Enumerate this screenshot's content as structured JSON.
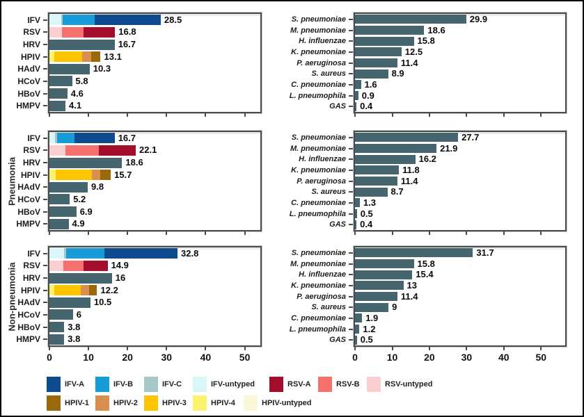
{
  "figure": {
    "title": "",
    "row_labels": [
      "",
      "Pneumonia",
      "Non-pneumonia"
    ],
    "colors": {
      "IFV-A": "#0e4a8e",
      "IFV-B": "#189cd8",
      "IFV-C": "#a5c8c6",
      "IFV-untyped": "#d9f6f9",
      "RSV-A": "#a40e2d",
      "RSV-B": "#f4716d",
      "RSV-untyped": "#f9cfd1",
      "HPIV-1": "#9a690b",
      "HPIV-2": "#d98f4f",
      "HPIV-3": "#fdc500",
      "HPIV-4": "#fbf36d",
      "HPIV-untyped": "#fbf8d9",
      "default_bar": "#45666e",
      "panel_border": "#4a4a4a",
      "figure_border": "#000000"
    },
    "legend": {
      "row1": [
        {
          "label": "IFV-A",
          "color": "#0e4a8e"
        },
        {
          "label": "IFV-B",
          "color": "#189cd8"
        },
        {
          "label": "IFV-C",
          "color": "#a5c8c6"
        },
        {
          "label": "IFV-untyped",
          "color": "#d9f6f9"
        },
        {
          "label": "RSV-A",
          "color": "#a40e2d"
        },
        {
          "label": "RSV-B",
          "color": "#f4716d"
        },
        {
          "label": "RSV-untyped",
          "color": "#f9cfd1"
        }
      ],
      "row2": [
        {
          "label": "HPIV-1",
          "color": "#9a690b"
        },
        {
          "label": "HPIV-2",
          "color": "#d98f4f"
        },
        {
          "label": "HPIV-3",
          "color": "#fdc500"
        },
        {
          "label": "HPIV-4",
          "color": "#fbf36d"
        },
        {
          "label": "HPIV-untyped",
          "color": "#fbf8d9"
        }
      ]
    }
  },
  "chart_data": {
    "type": "bar",
    "orientation": "horizontal",
    "grid": "3 rows (all cases, pneumonia, non-pneumonia) x 2 columns (viruses with subtype stacks, bacteria)",
    "x_axis": {
      "tick_labels": [
        "0",
        "10",
        "20",
        "30",
        "40",
        "50"
      ],
      "tick_values": [
        0,
        10,
        20,
        30,
        40,
        50
      ],
      "xlim": [
        0,
        50
      ],
      "labels_shown_on_row": 2
    },
    "panels": [
      {
        "id": "viruses-all",
        "row": 0,
        "col": "left",
        "label_style": "bold",
        "bars": [
          {
            "category": "IFV",
            "value": 28.5,
            "label": "28.5",
            "segments": [
              {
                "part": "IFV-untyped",
                "value": 3.0
              },
              {
                "part": "IFV-C",
                "value": 0.4
              },
              {
                "part": "IFV-B",
                "value": 8.1
              },
              {
                "part": "IFV-A",
                "value": 17.0
              }
            ]
          },
          {
            "category": "RSV",
            "value": 16.8,
            "label": "16.8",
            "segments": [
              {
                "part": "RSV-untyped",
                "value": 3.2
              },
              {
                "part": "RSV-B",
                "value": 5.5
              },
              {
                "part": "RSV-A",
                "value": 8.1
              }
            ]
          },
          {
            "category": "HRV",
            "value": 16.7,
            "label": "16.7"
          },
          {
            "category": "HPIV",
            "value": 13.1,
            "label": "13.1",
            "segments": [
              {
                "part": "HPIV-4",
                "value": 1.2
              },
              {
                "part": "HPIV-3",
                "value": 7.1
              },
              {
                "part": "HPIV-2",
                "value": 2.4
              },
              {
                "part": "HPIV-1",
                "value": 2.4
              }
            ]
          },
          {
            "category": "HAdV",
            "value": 10.3,
            "label": "10.3"
          },
          {
            "category": "HCoV",
            "value": 5.8,
            "label": "5.8"
          },
          {
            "category": "HBoV",
            "value": 4.6,
            "label": "4.6"
          },
          {
            "category": "HMPV",
            "value": 4.1,
            "label": "4.1"
          }
        ]
      },
      {
        "id": "bacteria-all",
        "row": 0,
        "col": "right",
        "label_style": "italic",
        "bars": [
          {
            "category": "S. pneumoniae",
            "value": 29.9,
            "label": "29.9"
          },
          {
            "category": "M. pneumoniae",
            "value": 18.6,
            "label": "18.6"
          },
          {
            "category": "H. influenzae",
            "value": 15.8,
            "label": "15.8"
          },
          {
            "category": "K. pneumoniae",
            "value": 12.5,
            "label": "12.5"
          },
          {
            "category": "P. aeruginosa",
            "value": 11.4,
            "label": "11.4"
          },
          {
            "category": "S. aureus",
            "value": 8.9,
            "label": "8.9"
          },
          {
            "category": "C. pneumoniae",
            "value": 1.6,
            "label": "1.6"
          },
          {
            "category": "L. pneumophila",
            "value": 0.9,
            "label": "0.9"
          },
          {
            "category": "GAS",
            "value": 0.4,
            "label": "0.4"
          }
        ]
      },
      {
        "id": "viruses-pneumonia",
        "row": 1,
        "col": "left",
        "label_style": "bold",
        "bars": [
          {
            "category": "IFV",
            "value": 16.7,
            "label": "16.7",
            "segments": [
              {
                "part": "IFV-untyped",
                "value": 1.5
              },
              {
                "part": "IFV-C",
                "value": 0.4
              },
              {
                "part": "IFV-B",
                "value": 4.6
              },
              {
                "part": "IFV-A",
                "value": 10.2
              }
            ]
          },
          {
            "category": "RSV",
            "value": 22.1,
            "label": "22.1",
            "segments": [
              {
                "part": "RSV-untyped",
                "value": 4.1
              },
              {
                "part": "RSV-B",
                "value": 8.6
              },
              {
                "part": "RSV-A",
                "value": 9.4
              }
            ]
          },
          {
            "category": "HRV",
            "value": 18.6,
            "label": "18.6"
          },
          {
            "category": "HPIV",
            "value": 15.7,
            "label": "15.7",
            "segments": [
              {
                "part": "HPIV-4",
                "value": 1.6
              },
              {
                "part": "HPIV-3",
                "value": 9.3
              },
              {
                "part": "HPIV-2",
                "value": 2.2
              },
              {
                "part": "HPIV-1",
                "value": 2.6
              }
            ]
          },
          {
            "category": "HAdV",
            "value": 9.8,
            "label": "9.8"
          },
          {
            "category": "HCoV",
            "value": 5.2,
            "label": "5.2"
          },
          {
            "category": "HBoV",
            "value": 6.9,
            "label": "6.9"
          },
          {
            "category": "HMPV",
            "value": 4.9,
            "label": "4.9"
          }
        ]
      },
      {
        "id": "bacteria-pneumonia",
        "row": 1,
        "col": "right",
        "label_style": "italic",
        "bars": [
          {
            "category": "S. pneumoniae",
            "value": 27.7,
            "label": "27.7"
          },
          {
            "category": "M. pneumoniae",
            "value": 21.9,
            "label": "21.9"
          },
          {
            "category": "H. influenzae",
            "value": 16.2,
            "label": "16.2"
          },
          {
            "category": "K. pneumoniae",
            "value": 11.8,
            "label": "11.8"
          },
          {
            "category": "P. aeruginosa",
            "value": 11.4,
            "label": "11.4"
          },
          {
            "category": "S. aureus",
            "value": 8.7,
            "label": "8.7"
          },
          {
            "category": "C. pneumoniae",
            "value": 1.3,
            "label": "1.3"
          },
          {
            "category": "L. pneumophila",
            "value": 0.5,
            "label": "0.5"
          },
          {
            "category": "GAS",
            "value": 0.4,
            "label": "0.4"
          }
        ]
      },
      {
        "id": "viruses-non-pneumonia",
        "row": 2,
        "col": "left",
        "label_style": "bold",
        "bars": [
          {
            "category": "IFV",
            "value": 32.8,
            "label": "32.8",
            "segments": [
              {
                "part": "IFV-untyped",
                "value": 3.8
              },
              {
                "part": "IFV-C",
                "value": 0.5
              },
              {
                "part": "IFV-B",
                "value": 9.7
              },
              {
                "part": "IFV-A",
                "value": 18.8
              }
            ]
          },
          {
            "category": "RSV",
            "value": 14.9,
            "label": "14.9",
            "segments": [
              {
                "part": "RSV-untyped",
                "value": 3.5
              },
              {
                "part": "RSV-B",
                "value": 5.3
              },
              {
                "part": "RSV-A",
                "value": 6.1
              }
            ]
          },
          {
            "category": "HRV",
            "value": 16,
            "label": "16"
          },
          {
            "category": "HPIV",
            "value": 12.2,
            "label": "12.2",
            "segments": [
              {
                "part": "HPIV-4",
                "value": 1.2
              },
              {
                "part": "HPIV-3",
                "value": 6.9
              },
              {
                "part": "HPIV-2",
                "value": 2.1
              },
              {
                "part": "HPIV-1",
                "value": 2.0
              }
            ]
          },
          {
            "category": "HAdV",
            "value": 10.5,
            "label": "10.5"
          },
          {
            "category": "HCoV",
            "value": 6,
            "label": "6"
          },
          {
            "category": "HBoV",
            "value": 3.8,
            "label": "3.8"
          },
          {
            "category": "HMPV",
            "value": 3.8,
            "label": "3.8"
          }
        ]
      },
      {
        "id": "bacteria-non-pneumonia",
        "row": 2,
        "col": "right",
        "label_style": "italic",
        "bars": [
          {
            "category": "S. pneumoniae",
            "value": 31.7,
            "label": "31.7"
          },
          {
            "category": "M. pneumoniae",
            "value": 15.8,
            "label": "15.8"
          },
          {
            "category": "H. influenzae",
            "value": 15.4,
            "label": "15.4"
          },
          {
            "category": "K. pneumoniae",
            "value": 13,
            "label": "13"
          },
          {
            "category": "P. aeruginosa",
            "value": 11.4,
            "label": "11.4"
          },
          {
            "category": "S. aureus",
            "value": 9,
            "label": "9"
          },
          {
            "category": "C. pneumoniae",
            "value": 1.9,
            "label": "1.9"
          },
          {
            "category": "L. pneumophila",
            "value": 1.2,
            "label": "1.2"
          },
          {
            "category": "GAS",
            "value": 0.5,
            "label": "0.5"
          }
        ]
      }
    ]
  }
}
